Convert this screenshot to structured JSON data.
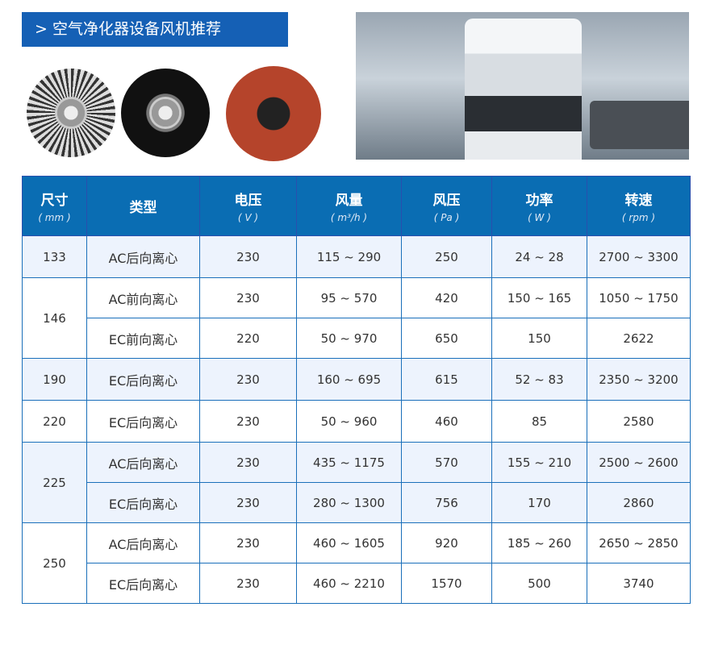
{
  "banner": {
    "icon": "chevron-right",
    "title": "空气净化器设备风机推荐",
    "text": "> 空气净化器设备风机推荐"
  },
  "table": {
    "headers": [
      {
        "label": "尺寸",
        "unit": "( mm )"
      },
      {
        "label": "类型",
        "unit": ""
      },
      {
        "label": "电压",
        "unit": "( V )"
      },
      {
        "label": "风量",
        "unit": "( m³/h )"
      },
      {
        "label": "风压",
        "unit": "( Pa )"
      },
      {
        "label": "功率",
        "unit": "( W )"
      },
      {
        "label": "转速",
        "unit": "( rpm )"
      }
    ],
    "groups": [
      {
        "size": "133",
        "rows": [
          [
            "AC后向离心",
            "230",
            "115 ~ 290",
            "250",
            "24 ~ 28",
            "2700 ~ 3300"
          ]
        ]
      },
      {
        "size": "146",
        "rows": [
          [
            "AC前向离心",
            "230",
            "95 ~ 570",
            "420",
            "150 ~ 165",
            "1050 ~ 1750"
          ],
          [
            "EC前向离心",
            "220",
            "50 ~ 970",
            "650",
            "150",
            "2622"
          ]
        ]
      },
      {
        "size": "190",
        "rows": [
          [
            "EC后向离心",
            "230",
            "160 ~ 695",
            "615",
            "52 ~ 83",
            "2350 ~ 3200"
          ]
        ]
      },
      {
        "size": "220",
        "rows": [
          [
            "EC后向离心",
            "230",
            "50 ~ 960",
            "460",
            "85",
            "2580"
          ]
        ]
      },
      {
        "size": "225",
        "rows": [
          [
            "AC后向离心",
            "230",
            "435 ~ 1175",
            "570",
            "155 ~ 210",
            "2500 ~ 2600"
          ],
          [
            "EC后向离心",
            "230",
            "280 ~ 1300",
            "756",
            "170",
            "2860"
          ]
        ]
      },
      {
        "size": "250",
        "rows": [
          [
            "AC后向离心",
            "230",
            "460 ~ 1605",
            "920",
            "185 ~ 260",
            "2650 ~ 2850"
          ],
          [
            "EC后向离心",
            "230",
            "460 ~ 2210",
            "1570",
            "500",
            "3740"
          ]
        ]
      }
    ]
  },
  "colors": {
    "header": "#0a6db3",
    "banner": "#1560b5",
    "shade": "#edf3fd",
    "border": "#1a6fba"
  }
}
